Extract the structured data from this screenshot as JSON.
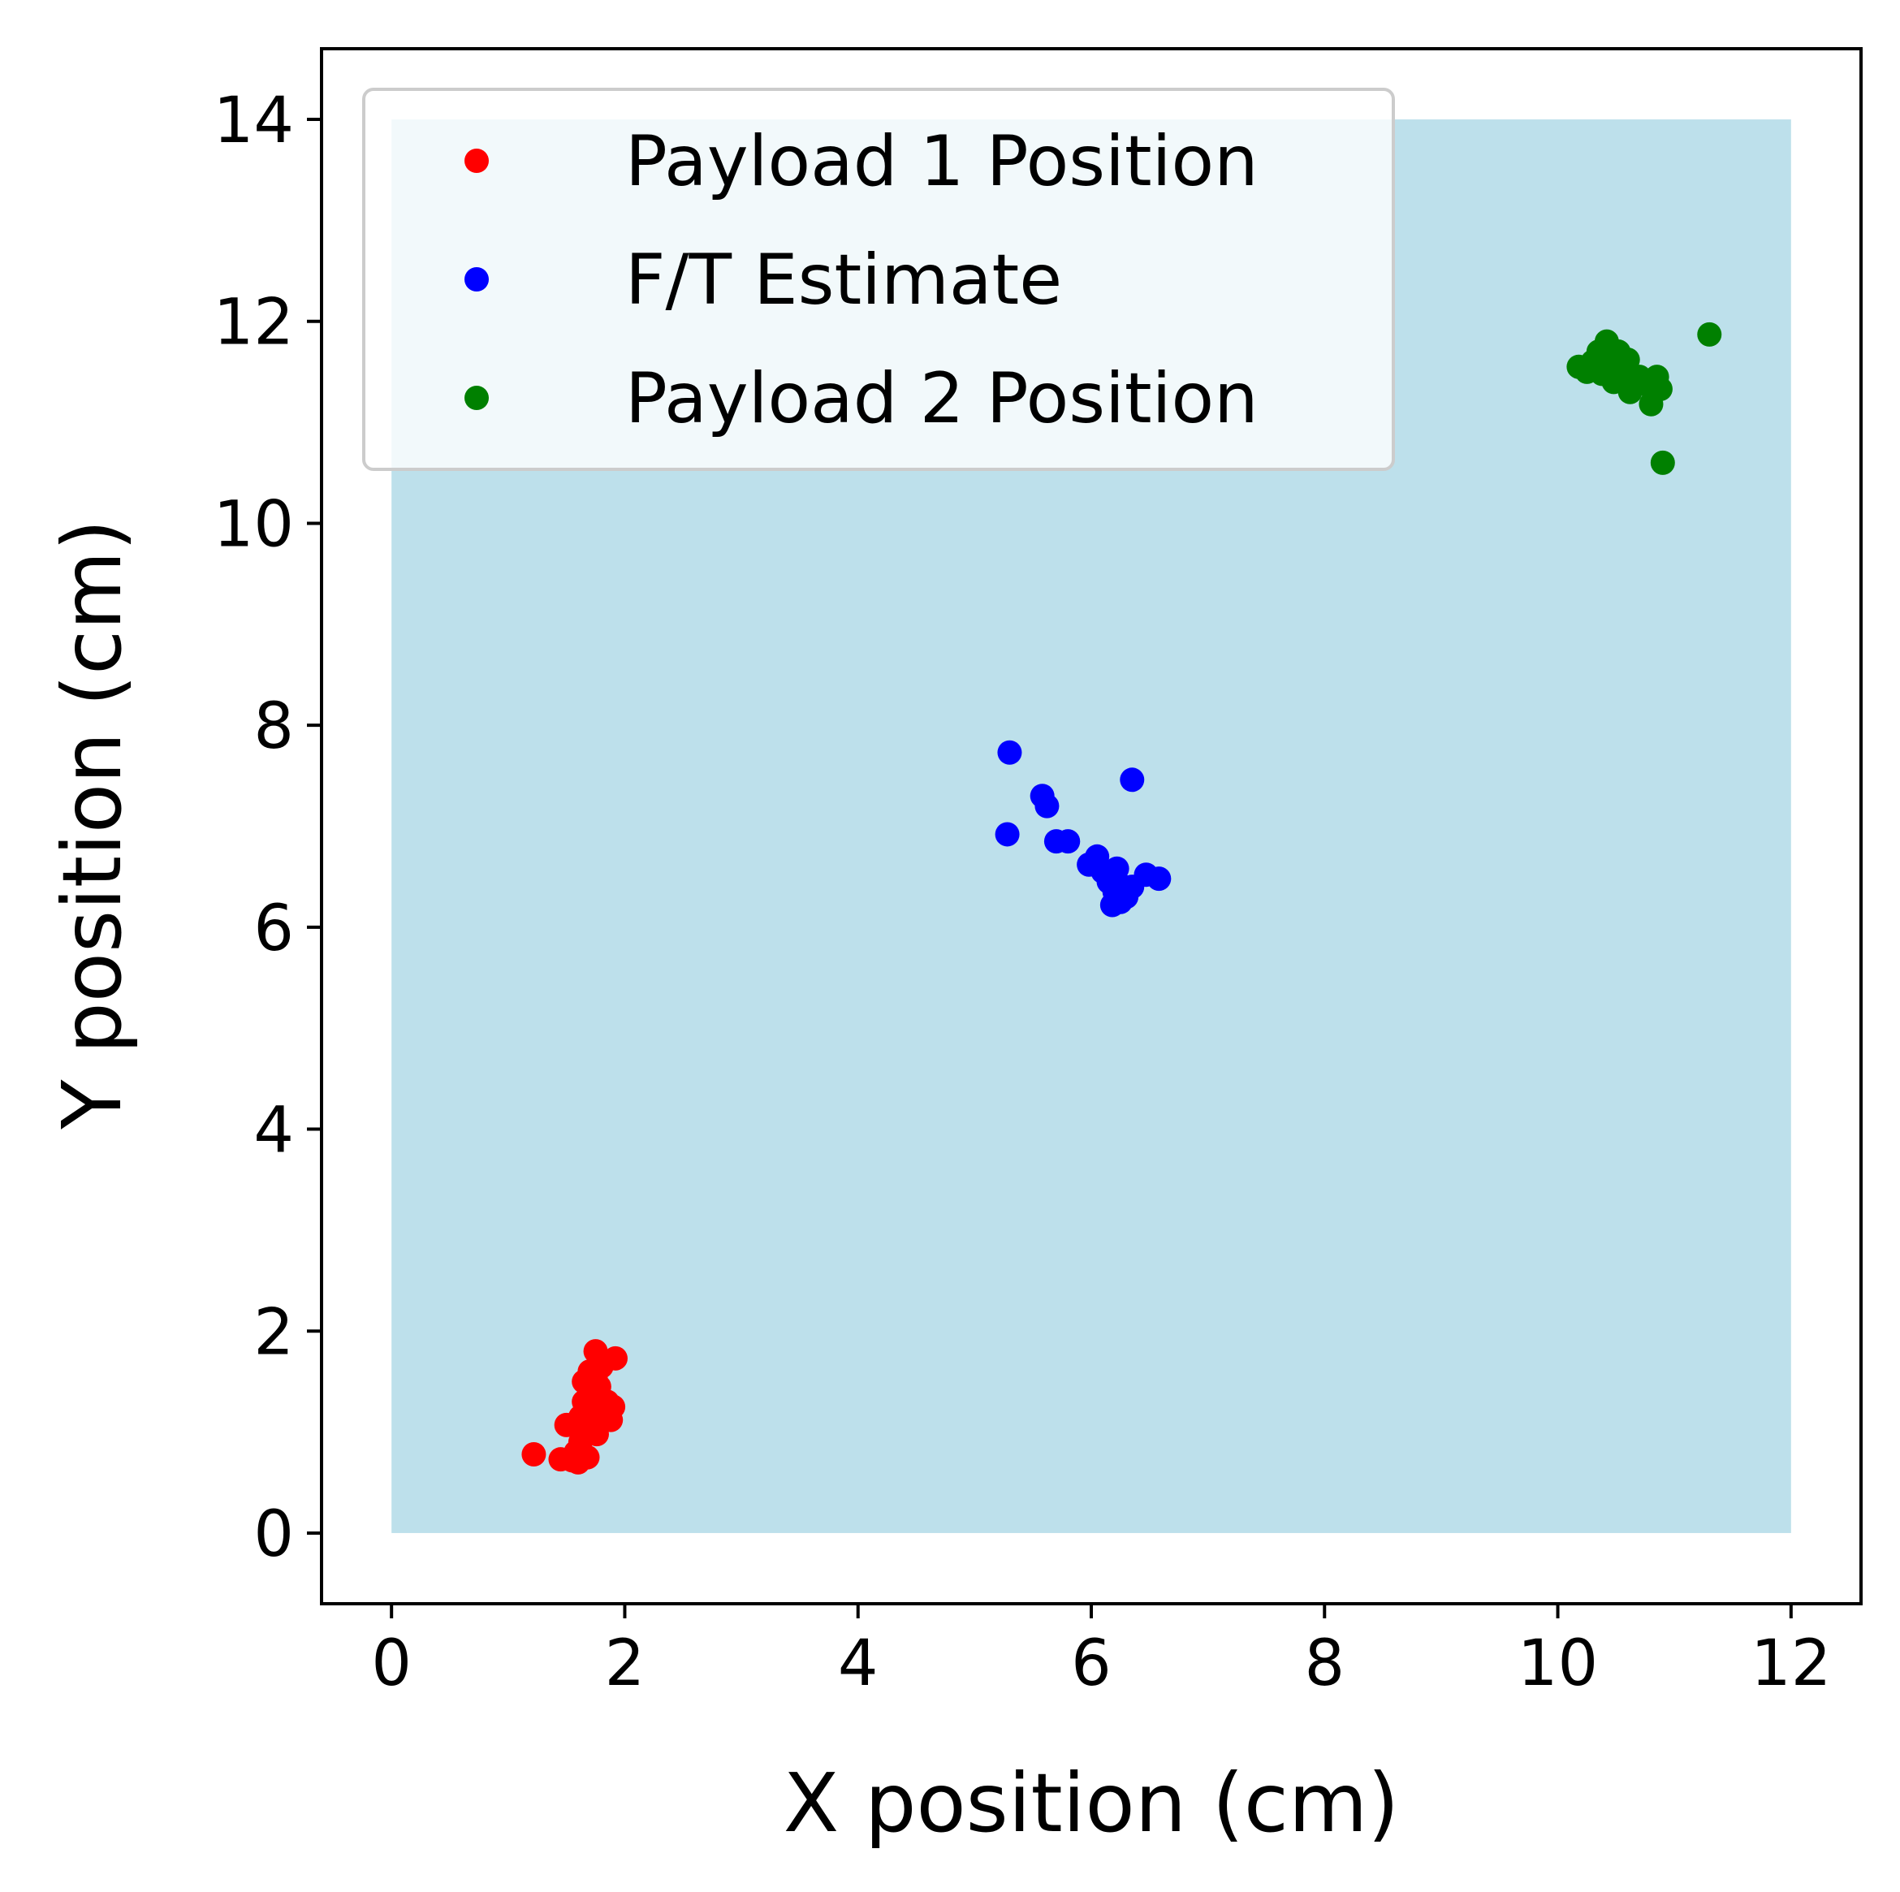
{
  "chart_data": {
    "type": "scatter",
    "xlabel": "X position (cm)",
    "ylabel": "Y position (cm)",
    "xlim": [
      -0.6,
      12.6
    ],
    "ylim": [
      -0.7,
      14.7
    ],
    "xticks": [
      "0",
      "2",
      "4",
      "6",
      "8",
      "10",
      "12"
    ],
    "yticks": [
      "0",
      "2",
      "4",
      "6",
      "8",
      "10",
      "12",
      "14"
    ],
    "grid": false,
    "legend_position": "top-left",
    "workspace": {
      "x": [
        0,
        12
      ],
      "y": [
        0,
        14
      ],
      "color": "#add8e6"
    },
    "series": [
      {
        "name": "Payload 1 Position",
        "color": "#ff0000",
        "points": [
          [
            1.22,
            0.78
          ],
          [
            1.45,
            0.73
          ],
          [
            1.5,
            1.07
          ],
          [
            1.55,
            0.72
          ],
          [
            1.58,
            0.8
          ],
          [
            1.6,
            0.7
          ],
          [
            1.62,
            0.9
          ],
          [
            1.62,
            1.15
          ],
          [
            1.65,
            1.3
          ],
          [
            1.65,
            1.5
          ],
          [
            1.68,
            0.75
          ],
          [
            1.68,
            1.0
          ],
          [
            1.7,
            1.2
          ],
          [
            1.7,
            1.4
          ],
          [
            1.7,
            1.6
          ],
          [
            1.72,
            1.1
          ],
          [
            1.72,
            1.35
          ],
          [
            1.75,
            1.55
          ],
          [
            1.75,
            1.8
          ],
          [
            1.76,
            0.98
          ],
          [
            1.78,
            1.25
          ],
          [
            1.78,
            1.45
          ],
          [
            1.8,
            1.65
          ],
          [
            1.82,
            1.12
          ],
          [
            1.85,
            1.3
          ],
          [
            1.88,
            1.12
          ],
          [
            1.9,
            1.25
          ],
          [
            1.92,
            1.73
          ]
        ]
      },
      {
        "name": "F/T Estimate",
        "color": "#0000ff",
        "points": [
          [
            5.3,
            7.73
          ],
          [
            5.28,
            6.92
          ],
          [
            5.58,
            7.3
          ],
          [
            5.62,
            7.2
          ],
          [
            5.7,
            6.85
          ],
          [
            5.8,
            6.85
          ],
          [
            5.98,
            6.62
          ],
          [
            6.05,
            6.7
          ],
          [
            6.1,
            6.55
          ],
          [
            6.15,
            6.45
          ],
          [
            6.18,
            6.22
          ],
          [
            6.2,
            6.35
          ],
          [
            6.22,
            6.58
          ],
          [
            6.25,
            6.25
          ],
          [
            6.28,
            6.4
          ],
          [
            6.3,
            6.3
          ],
          [
            6.35,
            7.46
          ],
          [
            6.35,
            6.4
          ],
          [
            6.47,
            6.52
          ],
          [
            6.58,
            6.48
          ]
        ]
      },
      {
        "name": "Payload 2 Position",
        "color": "#008000",
        "points": [
          [
            10.18,
            11.55
          ],
          [
            10.25,
            11.5
          ],
          [
            10.3,
            11.6
          ],
          [
            10.35,
            11.7
          ],
          [
            10.38,
            11.48
          ],
          [
            10.42,
            11.8
          ],
          [
            10.45,
            11.6
          ],
          [
            10.48,
            11.4
          ],
          [
            10.5,
            11.55
          ],
          [
            10.52,
            11.7
          ],
          [
            10.55,
            11.45
          ],
          [
            10.6,
            11.62
          ],
          [
            10.62,
            11.3
          ],
          [
            10.7,
            11.45
          ],
          [
            10.8,
            11.18
          ],
          [
            10.82,
            11.3
          ],
          [
            10.85,
            11.45
          ],
          [
            10.88,
            11.33
          ],
          [
            10.9,
            10.6
          ],
          [
            11.3,
            11.87
          ]
        ]
      }
    ]
  }
}
